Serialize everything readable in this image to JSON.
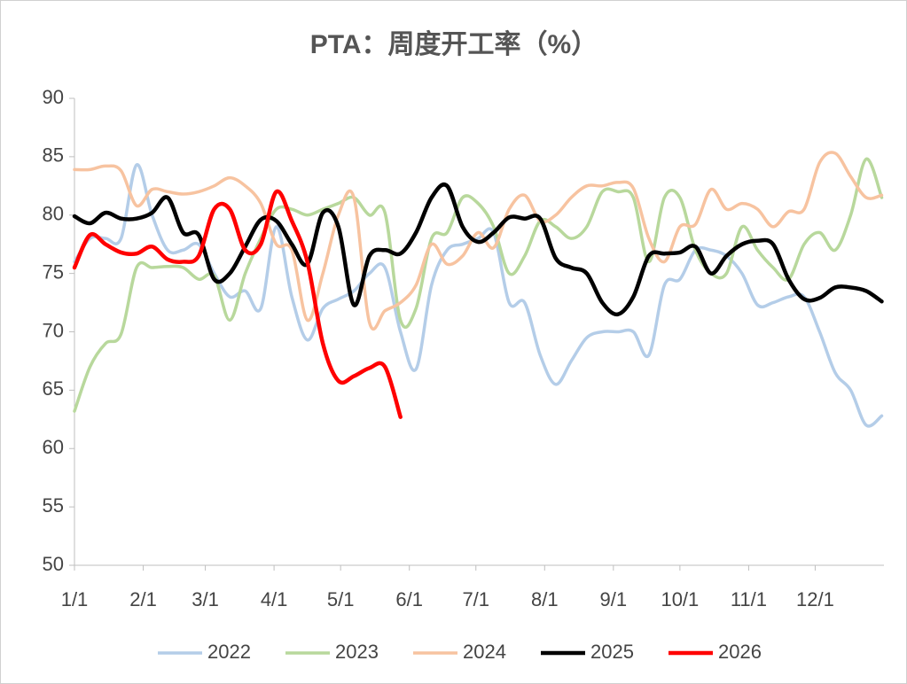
{
  "chart_data": {
    "type": "line",
    "title": "PTA：周度开工率（%）",
    "x": [
      0,
      7,
      14,
      21,
      28,
      35,
      42,
      49,
      56,
      63,
      70,
      77,
      84,
      91,
      98,
      105,
      112,
      119,
      126,
      133,
      140,
      147,
      154,
      161,
      168,
      175,
      182,
      189,
      196,
      203,
      210,
      217,
      224,
      231,
      238,
      245,
      252,
      259,
      266,
      273,
      280,
      287,
      294,
      301,
      308,
      315,
      322,
      329,
      336,
      343,
      350,
      357,
      364
    ],
    "xlim": [
      0,
      365
    ],
    "xticks": [
      {
        "value": 0,
        "label": "1/1"
      },
      {
        "value": 31,
        "label": "2/1"
      },
      {
        "value": 59,
        "label": "3/1"
      },
      {
        "value": 90,
        "label": "4/1"
      },
      {
        "value": 120,
        "label": "5/1"
      },
      {
        "value": 151,
        "label": "6/1"
      },
      {
        "value": 181,
        "label": "7/1"
      },
      {
        "value": 212,
        "label": "8/1"
      },
      {
        "value": 243,
        "label": "9/1"
      },
      {
        "value": 273,
        "label": "10/1"
      },
      {
        "value": 304,
        "label": "11/1"
      },
      {
        "value": 334,
        "label": "12/1"
      }
    ],
    "ylim": [
      50,
      90
    ],
    "yticks": [
      50,
      55,
      60,
      65,
      70,
      75,
      80,
      85,
      90
    ],
    "grid": false,
    "legend": "bottom",
    "series": [
      {
        "name": "2022",
        "color": "#b4cde8",
        "values": [
          76,
          78,
          78,
          78,
          84.3,
          80,
          77,
          77,
          77.5,
          75,
          73,
          73.5,
          72,
          79,
          73,
          69.3,
          72,
          72.8,
          73.5,
          75,
          75.5,
          70,
          66.8,
          74,
          77,
          77.5,
          78,
          78.5,
          72.5,
          72.5,
          68,
          65.5,
          67.5,
          69.5,
          70,
          70,
          70,
          68,
          74,
          74.5,
          77,
          77,
          76.5,
          75,
          72.3,
          72.5,
          73,
          73,
          70,
          66.5,
          65,
          62,
          62.8
        ]
      },
      {
        "name": "2023",
        "color": "#b8d89c",
        "values": [
          63.2,
          67,
          69,
          69.8,
          75.5,
          75.5,
          75.6,
          75.5,
          74.5,
          74.8,
          71,
          75,
          78,
          80.5,
          80.5,
          80,
          80.5,
          81,
          81.5,
          80,
          80.2,
          71,
          72,
          78,
          78.5,
          81.5,
          81,
          79,
          75,
          76.5,
          79.5,
          79,
          78,
          79,
          82,
          82,
          81.5,
          76,
          81.5,
          81.5,
          77,
          75,
          75,
          79,
          77,
          75.5,
          74.5,
          77.5,
          78.5,
          77,
          80,
          84.8,
          81.5
        ]
      },
      {
        "name": "2024",
        "color": "#f7c3a0",
        "values": [
          83.9,
          83.9,
          84.2,
          83.8,
          80.8,
          82.2,
          82,
          81.8,
          82,
          82.5,
          83.2,
          82.5,
          81,
          77.5,
          77,
          71,
          75,
          80,
          81.5,
          70.8,
          71.8,
          72.5,
          74,
          77.5,
          75.8,
          76.5,
          78.5,
          77.2,
          80.5,
          81.7,
          79.5,
          80,
          81.5,
          82.5,
          82.5,
          82.8,
          82.3,
          78,
          76,
          79,
          79.2,
          82.2,
          80.5,
          81,
          80.5,
          79,
          80.3,
          80.5,
          84.5,
          85.3,
          83.3,
          81.5,
          81.7
        ]
      },
      {
        "name": "2025",
        "color": "#000000",
        "values": [
          79.9,
          79.3,
          80.2,
          79.7,
          79.7,
          80.2,
          81.5,
          78.5,
          78.3,
          74.5,
          75,
          77.3,
          79.6,
          79.5,
          77.5,
          75.8,
          80.2,
          79,
          72.3,
          76.5,
          77,
          76.7,
          78.5,
          81.5,
          82.5,
          79,
          77.7,
          78.5,
          79.8,
          79.7,
          79.7,
          76.3,
          75.5,
          75,
          72.5,
          71.5,
          73,
          76.5,
          76.7,
          76.8,
          77.3,
          75,
          76.5,
          77.5,
          77.8,
          77.5,
          74.5,
          72.8,
          72.9,
          73.8,
          73.8,
          73.5,
          72.6
        ]
      },
      {
        "name": "2026",
        "color": "#ff0000",
        "values": [
          75.5,
          78.3,
          77.5,
          76.8,
          76.7,
          77.3,
          76.2,
          76,
          76.5,
          80.5,
          80.5,
          77,
          77.5,
          82,
          79.5,
          76,
          69,
          65.8,
          66.2,
          66.9,
          67.0,
          62.7,
          null,
          null,
          null,
          null,
          null,
          null,
          null,
          null,
          null,
          null,
          null,
          null,
          null,
          null,
          null,
          null,
          null,
          null,
          null,
          null,
          null,
          null,
          null,
          null,
          null,
          null,
          null,
          null,
          null,
          null,
          null
        ]
      }
    ]
  }
}
